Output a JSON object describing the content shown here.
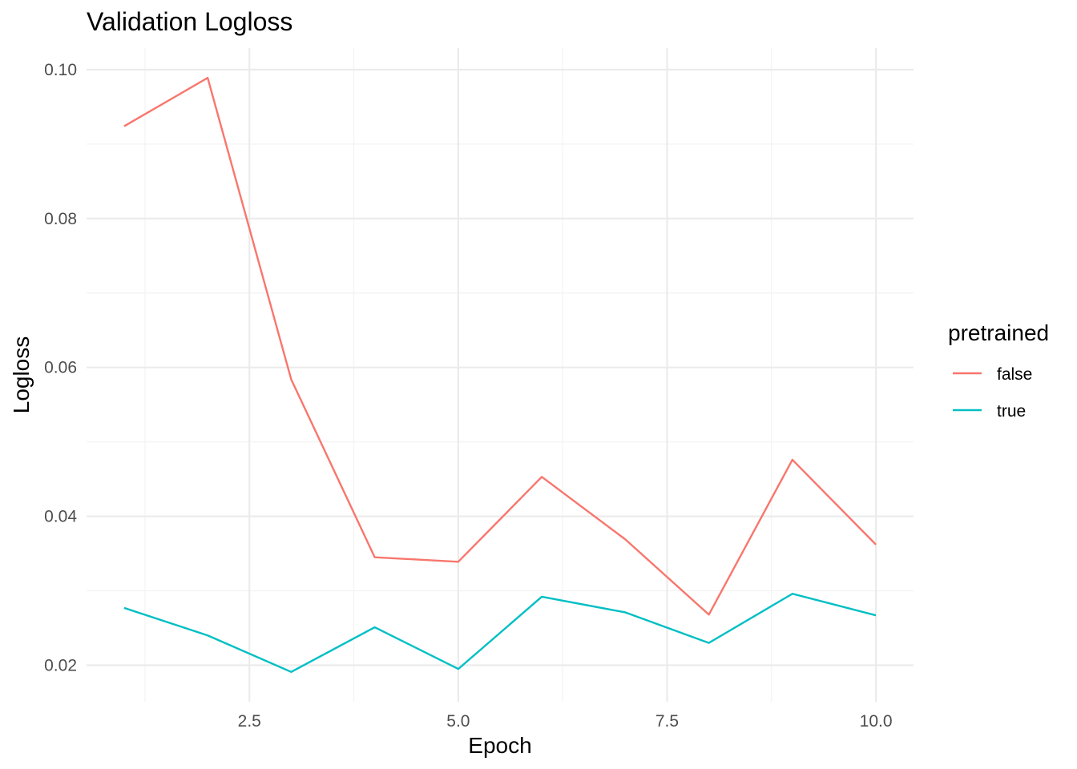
{
  "chart_data": {
    "type": "line",
    "title": "Validation Logloss",
    "xlabel": "Epoch",
    "ylabel": "Logloss",
    "x": [
      1,
      2,
      3,
      4,
      5,
      6,
      7,
      8,
      9,
      10
    ],
    "series": [
      {
        "name": "false",
        "color": "#F8766D",
        "values": [
          0.0924,
          0.0989,
          0.0584,
          0.0345,
          0.0339,
          0.0453,
          0.0369,
          0.0268,
          0.0476,
          0.0362
        ]
      },
      {
        "name": "true",
        "color": "#00BFC4",
        "values": [
          0.0277,
          0.024,
          0.0191,
          0.0251,
          0.0195,
          0.0292,
          0.0271,
          0.023,
          0.0296,
          0.0267
        ]
      }
    ],
    "xlim": [
      0.55,
      10.45
    ],
    "ylim": [
      0.0151,
      0.1029
    ],
    "xticks": [
      2.5,
      5.0,
      7.5,
      10.0
    ],
    "xtick_labels": [
      "2.5",
      "5.0",
      "7.5",
      "10.0"
    ],
    "yticks": [
      0.02,
      0.04,
      0.06,
      0.08,
      0.1
    ],
    "ytick_labels": [
      "0.02",
      "0.04",
      "0.06",
      "0.08",
      "0.10"
    ],
    "grid": true,
    "legend": {
      "title": "pretrained",
      "placement": "right"
    }
  }
}
